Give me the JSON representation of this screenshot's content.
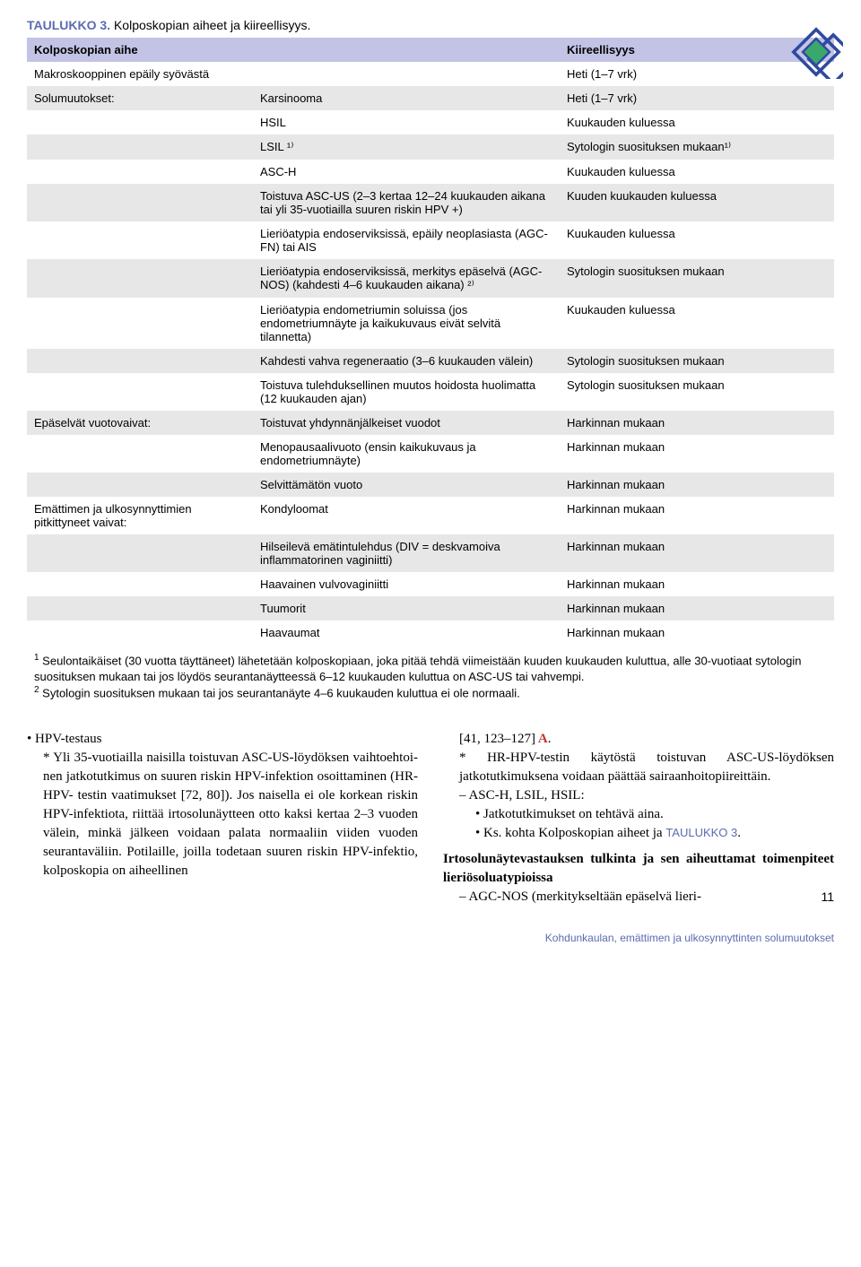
{
  "colors": {
    "header_bg": "#c3c3e6",
    "row_alt_bg": "#e7e7e7",
    "accent_blue": "#5b6bb0",
    "ref_red": "#c0392b"
  },
  "logo": {
    "outer": "#2f4a9e",
    "inner": "#3aa76d"
  },
  "table": {
    "title_label": "TAULUKKO 3.",
    "title_text": "Kolposkopian aiheet ja kiireellisyys.",
    "header_c1": "Kolposkopian aihe",
    "header_c2": "",
    "header_c3": "Kiireellisyys",
    "rows": [
      {
        "c1": "Makroskooppinen epäily syövästä",
        "c2": "",
        "c3": "Heti (1–7 vrk)"
      },
      {
        "c1": "Solumuutokset:",
        "c2": "Karsinooma",
        "c3": "Heti (1–7 vrk)"
      },
      {
        "c1": "",
        "c2": "HSIL",
        "c3": "Kuukauden kuluessa"
      },
      {
        "c1": "",
        "c2": "LSIL ¹⁾",
        "c3": "Sytologin suosituksen mukaan¹⁾"
      },
      {
        "c1": "",
        "c2": "ASC-H",
        "c3": "Kuukauden kuluessa"
      },
      {
        "c1": "",
        "c2": "Toistuva ASC-US (2–3 kertaa 12–24 kuukauden aikana tai yli 35-vuotiailla suuren riskin HPV +)",
        "c3": "Kuuden kuukauden kuluessa"
      },
      {
        "c1": "",
        "c2": "Lieriöatypia endoserviksissä, epäily neoplasiasta (AGC-FN) tai AIS",
        "c3": "Kuukauden kuluessa"
      },
      {
        "c1": "",
        "c2": "Lieriöatypia endoserviksissä, merkitys epäselvä (AGC-NOS) (kahdesti 4–6 kuukauden aikana) ²⁾",
        "c3": "Sytologin suosituksen mukaan"
      },
      {
        "c1": "",
        "c2": "Lieriöatypia endometriumin soluissa (jos endometriumnäyte ja kaikukuvaus eivät selvitä tilannetta)",
        "c3": "Kuukauden kuluessa"
      },
      {
        "c1": "",
        "c2": "Kahdesti vahva regeneraatio (3–6 kuukauden välein)",
        "c3": "Sytologin suosituksen mukaan"
      },
      {
        "c1": "",
        "c2": "Toistuva tulehduksellinen muutos hoidosta huolimatta (12 kuukauden ajan)",
        "c3": "Sytologin suosituksen mukaan"
      },
      {
        "c1": "Epäselvät vuotovaivat:",
        "c2": "Toistuvat yhdynnänjälkeiset vuodot",
        "c3": "Harkinnan mukaan"
      },
      {
        "c1": "",
        "c2": "Menopausaalivuoto (ensin kaikukuvaus ja endometriumnäyte)",
        "c3": "Harkinnan mukaan"
      },
      {
        "c1": "",
        "c2": "Selvittämätön vuoto",
        "c3": "Harkinnan mukaan"
      },
      {
        "c1": "Emättimen ja ulkosynnyttimien pitkittyneet vaivat:",
        "c2": "Kondyloomat",
        "c3": "Harkinnan mukaan"
      },
      {
        "c1": "",
        "c2": "Hilseilevä emätintulehdus (DIV = deskvamoiva inflammatorinen vaginiitti)",
        "c3": "Harkinnan mukaan"
      },
      {
        "c1": "",
        "c2": "Haavainen vulvovaginiitti",
        "c3": "Harkinnan mukaan"
      },
      {
        "c1": "",
        "c2": "Tuumorit",
        "c3": "Harkinnan mukaan"
      },
      {
        "c1": "",
        "c2": "Haavaumat",
        "c3": "Harkinnan mukaan"
      }
    ],
    "footnote1_sup": "1",
    "footnote1": " Seulontaikäiset (30 vuotta täyttäneet) lähetetään kolposkopiaan, joka pitää tehdä viimeistään kuuden kuukauden kuluttua, alle 30-vuotiaat sytologin suosituksen mukaan tai jos löydös seurantanäytteessä 6–12 kuukauden kuluttua on ASC-US tai vahvempi.",
    "footnote2_sup": "2",
    "footnote2": " Sytologin suosituksen mukaan tai jos seurantanäyte 4–6 kuukauden kuluttua ei ole normaali."
  },
  "body": {
    "left": {
      "bullet1": "HPV-testaus",
      "bullet2": "Yli 35-vuotiailla naisilla toistuvan ASC-US-löydöksen vaihtoehtoi­nen jatkotutkimus on suuren riskin HPV-infektion osoittaminen (HR-HPV- testin vaatimukset [72, 80]). Jos naisella ei ole korkean riskin HPV-infektiota, riittää irtosolunäytteen otto kaksi kertaa 2–3 vuoden välein, minkä jälkeen voidaan palata normaaliin vii­den vuoden seurantaväliin. Potilaille, joilla todetaan suuren riskin HPV-infektio, kolposkopia on aiheellinen"
    },
    "right": {
      "ref": "[41, 123–127]",
      "ref_a": " A",
      "ref_tail": ".",
      "bullet2": "HR-HPV-testin käytöstä toistuvan ASC-US-löydöksen jatkotutkimukse­na voidaan päättää sairaanhoitopiireit­täin.",
      "dash1": "ASC-H, LSIL, HSIL:",
      "sub1": "Jatkotutkimukset on tehtävä aina.",
      "sub2a": "Ks. kohta Kolposkopian aiheet ja ",
      "sub2b": "TAU­LUKKO 3",
      "sub2c": ".",
      "heading": "Irtosolunäytevastauksen tulkinta ja sen aiheuttamat toimenpiteet lieriösoluatypioissa",
      "dash2": "AGC-NOS (merkitykseltään epäselvä lieri-"
    }
  },
  "page_number": "11",
  "footer": "Kohdunkaulan, emättimen ja ulkosynnyttinten solumuutokset"
}
